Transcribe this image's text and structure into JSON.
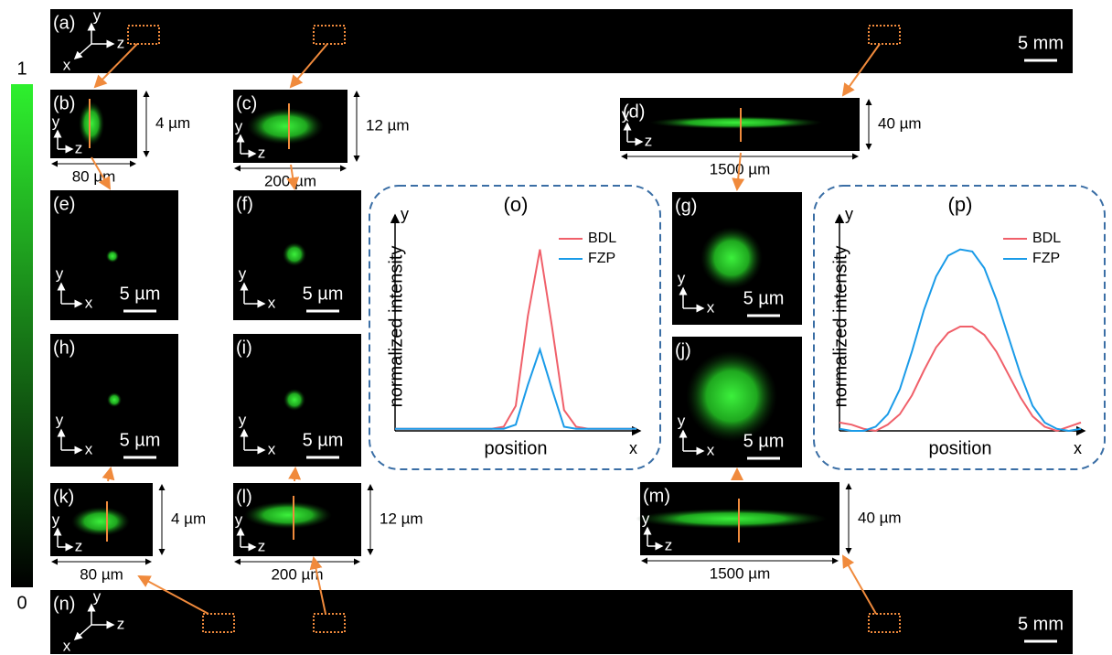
{
  "colorbar": {
    "ticks": [
      0,
      1
    ]
  },
  "panels": [
    {
      "label": "(a)",
      "axes": [
        "y",
        "z",
        "x"
      ],
      "scale": "5 mm"
    },
    {
      "label": "(b)",
      "axes": [
        "y",
        "z"
      ],
      "height_dim": "4 µm",
      "width_dim": "80 µm"
    },
    {
      "label": "(c)",
      "axes": [
        "y",
        "z"
      ],
      "height_dim": "12 µm",
      "width_dim": "200 µm"
    },
    {
      "label": "(d)",
      "axes": [
        "y",
        "z"
      ],
      "height_dim": "40 µm",
      "width_dim": "1500 µm"
    },
    {
      "label": "(e)",
      "axes": [
        "y",
        "x"
      ],
      "scale": "5 µm"
    },
    {
      "label": "(f)",
      "axes": [
        "y",
        "x"
      ],
      "scale": "5 µm"
    },
    {
      "label": "(g)",
      "axes": [
        "y",
        "x"
      ],
      "scale": "5 µm"
    },
    {
      "label": "(h)",
      "axes": [
        "y",
        "x"
      ],
      "scale": "5 µm"
    },
    {
      "label": "(i)",
      "axes": [
        "y",
        "x"
      ],
      "scale": "5 µm"
    },
    {
      "label": "(j)",
      "axes": [
        "y",
        "x"
      ],
      "scale": "5 µm"
    },
    {
      "label": "(k)",
      "axes": [
        "y",
        "z"
      ],
      "height_dim": "4 µm",
      "width_dim": "80 µm"
    },
    {
      "label": "(l)",
      "axes": [
        "y",
        "z"
      ],
      "height_dim": "12 µm",
      "width_dim": "200 µm"
    },
    {
      "label": "(m)",
      "axes": [
        "y",
        "z"
      ],
      "height_dim": "40 µm",
      "width_dim": "1500 µm"
    },
    {
      "label": "(n)",
      "axes": [
        "y",
        "z",
        "x"
      ],
      "scale": "5 mm"
    }
  ],
  "chart_data": [
    {
      "type": "line",
      "title": "(o)",
      "x_label": "position",
      "y_label": "normalized intensity",
      "x_axis_name": "x",
      "y_axis_name": "y",
      "legend": "upper right",
      "xlim": [
        0,
        20
      ],
      "ylim": [
        0,
        1
      ],
      "x": [
        0,
        1,
        2,
        3,
        4,
        5,
        6,
        7,
        8,
        9,
        10,
        11,
        12,
        13,
        14,
        15,
        16,
        17,
        18,
        19,
        20
      ],
      "series": [
        {
          "name": "BDL",
          "color": "#f0606a",
          "values": [
            0.01,
            0.01,
            0.01,
            0.01,
            0.01,
            0.01,
            0.01,
            0.01,
            0.01,
            0.02,
            0.12,
            0.55,
            0.87,
            0.5,
            0.1,
            0.02,
            0.01,
            0.01,
            0.01,
            0.01,
            0.01
          ]
        },
        {
          "name": "FZP",
          "color": "#1a9be8",
          "values": [
            0.01,
            0.01,
            0.01,
            0.01,
            0.01,
            0.01,
            0.01,
            0.01,
            0.01,
            0.01,
            0.03,
            0.22,
            0.39,
            0.2,
            0.02,
            0.01,
            0.01,
            0.01,
            0.01,
            0.01,
            0.01
          ]
        }
      ]
    },
    {
      "type": "line",
      "title": "(p)",
      "x_label": "position",
      "y_label": "normalized intensity",
      "x_axis_name": "x",
      "y_axis_name": "y",
      "legend": "upper right",
      "xlim": [
        0,
        20
      ],
      "ylim": [
        0,
        1
      ],
      "x": [
        0,
        1,
        2,
        3,
        4,
        5,
        6,
        7,
        8,
        9,
        10,
        11,
        12,
        13,
        14,
        15,
        16,
        17,
        18,
        19,
        20
      ],
      "series": [
        {
          "name": "BDL",
          "color": "#f0606a",
          "values": [
            0.04,
            0.03,
            0.01,
            0.0,
            0.03,
            0.08,
            0.17,
            0.29,
            0.4,
            0.47,
            0.5,
            0.5,
            0.46,
            0.38,
            0.27,
            0.16,
            0.07,
            0.02,
            0.0,
            0.02,
            0.04
          ]
        },
        {
          "name": "FZP",
          "color": "#1a9be8",
          "values": [
            0.01,
            0.0,
            0.0,
            0.02,
            0.08,
            0.2,
            0.38,
            0.58,
            0.74,
            0.84,
            0.87,
            0.86,
            0.78,
            0.63,
            0.45,
            0.27,
            0.12,
            0.04,
            0.01,
            0.0,
            0.01
          ]
        }
      ]
    }
  ]
}
